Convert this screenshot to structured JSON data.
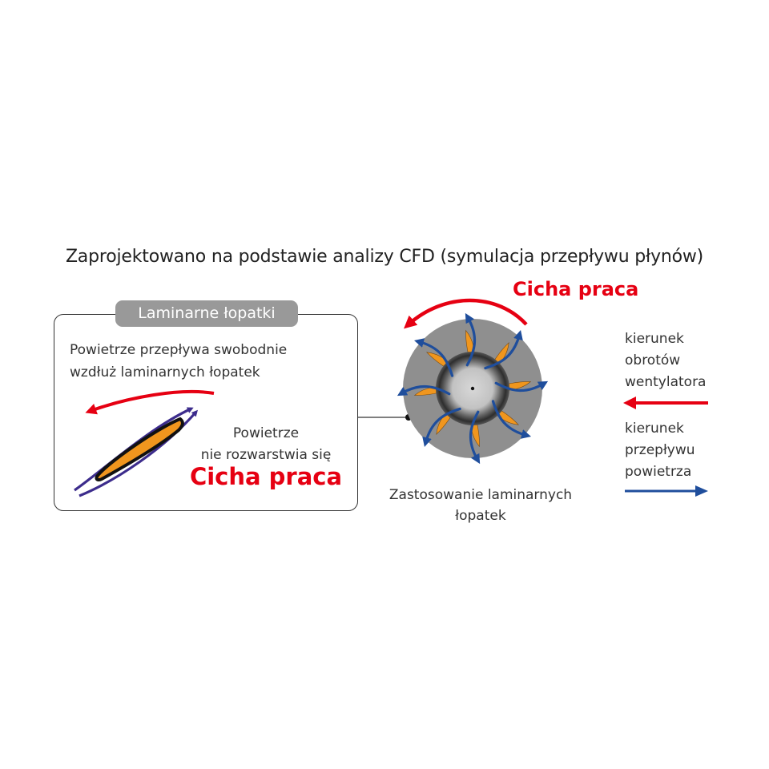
{
  "title": "Zaprojektowano na podstawie analizy CFD (symulacja przepływu płynów)",
  "panel": {
    "tab_label": "Laminarne łopatki",
    "description_lines": [
      "Powietrze przepływa swobodnie",
      "wzdłuż laminarnych łopatek"
    ],
    "note_lines": [
      "Powietrze",
      "nie rozwarstwia się"
    ],
    "quiet_label": "Cicha praca"
  },
  "fan": {
    "quiet_label": "Cicha praca",
    "caption_lines": [
      "Zastosowanie laminarnych",
      "łopatek"
    ]
  },
  "legend": {
    "rotation_lines": [
      "kierunek",
      "obrotów",
      "wentylatora"
    ],
    "flow_lines": [
      "kierunek",
      "przepływu",
      "powietrza"
    ]
  },
  "colors": {
    "red_accent": "#e60012",
    "blue_flow": "#1f4e9c",
    "purple_flow": "#3c2c8c",
    "blade_orange": "#f0961e",
    "tab_gray": "#999999",
    "fan_gray": "#8f8f8f"
  }
}
